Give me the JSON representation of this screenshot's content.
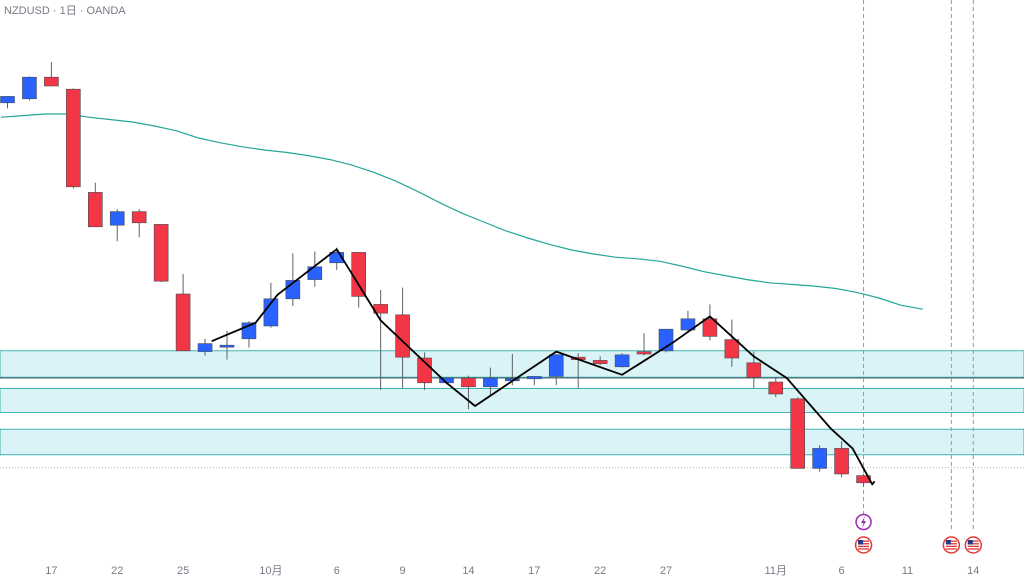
{
  "header": {
    "symbol_line": "NZDUSD · 1日 · OANDA"
  },
  "colors": {
    "up": "#2962ff",
    "down": "#f23645",
    "ma": "#26a69a",
    "zone_fill": "#cdeff3",
    "zone_stroke": "#1aa3a0",
    "line": "#000000",
    "event_purple": "#9c27b0",
    "event_red": "#e53935"
  },
  "chart_data": {
    "type": "candlestick",
    "x_tick_labels": [
      "17",
      "22",
      "25",
      "10月",
      "6",
      "9",
      "14",
      "17",
      "22",
      "27",
      "11月",
      "6",
      "11",
      "14"
    ],
    "candles": [
      {
        "dir": "up",
        "o": -0.02,
        "h": 0.08,
        "l": -0.16,
        "c": 0.14
      },
      {
        "dir": "up",
        "o": 0.08,
        "h": 0.64,
        "l": 0.04,
        "c": 0.62
      },
      {
        "dir": "down",
        "o": 0.62,
        "h": 1.0,
        "l": 0.4,
        "c": 0.4
      },
      {
        "dir": "down",
        "o": 0.32,
        "h": 0.34,
        "l": -2.16,
        "c": -2.12
      },
      {
        "dir": "down",
        "o": -2.26,
        "h": -2.02,
        "l": -3.12,
        "c": -3.12
      },
      {
        "dir": "up",
        "o": -3.08,
        "h": -2.68,
        "l": -3.48,
        "c": -2.74
      },
      {
        "dir": "down",
        "o": -2.74,
        "h": -2.68,
        "l": -3.38,
        "c": -3.02
      },
      {
        "dir": "down",
        "o": -3.06,
        "h": -3.06,
        "l": -4.5,
        "c": -4.48
      },
      {
        "dir": "down",
        "o": -4.8,
        "h": -4.3,
        "l": -6.22,
        "c": -6.22
      },
      {
        "dir": "up",
        "o": -6.24,
        "h": -5.92,
        "l": -6.34,
        "c": -6.04
      },
      {
        "dir": "up",
        "o": -6.1,
        "h": -5.72,
        "l": -6.44,
        "c": -6.08
      },
      {
        "dir": "up",
        "o": -5.92,
        "h": -5.48,
        "l": -6.14,
        "c": -5.52
      },
      {
        "dir": "up",
        "o": -5.6,
        "h": -4.52,
        "l": -5.64,
        "c": -4.92
      },
      {
        "dir": "up",
        "o": -4.92,
        "h": -3.78,
        "l": -5.1,
        "c": -4.46
      },
      {
        "dir": "up",
        "o": -4.44,
        "h": -3.74,
        "l": -4.62,
        "c": -4.12
      },
      {
        "dir": "up",
        "o": -4.02,
        "h": -3.64,
        "l": -4.2,
        "c": -3.76
      },
      {
        "dir": "down",
        "o": -3.76,
        "h": -3.76,
        "l": -5.14,
        "c": -4.86
      },
      {
        "dir": "down",
        "o": -5.06,
        "h": -4.7,
        "l": -7.2,
        "c": -5.28
      },
      {
        "dir": "down",
        "o": -5.32,
        "h": -4.64,
        "l": -7.16,
        "c": -6.38
      },
      {
        "dir": "down",
        "o": -6.4,
        "h": -6.26,
        "l": -7.2,
        "c": -7.02
      },
      {
        "dir": "up",
        "o": -7.02,
        "h": -6.96,
        "l": -7.06,
        "c": -6.9
      },
      {
        "dir": "down",
        "o": -6.9,
        "h": -6.84,
        "l": -7.68,
        "c": -7.12
      },
      {
        "dir": "up",
        "o": -7.12,
        "h": -6.64,
        "l": -7.36,
        "c": -6.9
      },
      {
        "dir": "up",
        "o": -6.92,
        "h": -6.3,
        "l": -7.08,
        "c": -6.92
      },
      {
        "dir": "up",
        "o": -6.92,
        "h": -6.86,
        "l": -7.08,
        "c": -6.86
      },
      {
        "dir": "up",
        "o": -6.86,
        "h": -6.3,
        "l": -7.08,
        "c": -6.32
      },
      {
        "dir": "down",
        "o": -6.38,
        "h": -6.28,
        "l": -7.16,
        "c": -6.44
      },
      {
        "dir": "down",
        "o": -6.46,
        "h": -6.36,
        "l": -6.58,
        "c": -6.54
      },
      {
        "dir": "up",
        "o": -6.62,
        "h": -6.28,
        "l": -6.64,
        "c": -6.32
      },
      {
        "dir": "down",
        "o": -6.24,
        "h": -5.78,
        "l": -6.34,
        "c": -6.3
      },
      {
        "dir": "up",
        "o": -6.22,
        "h": -5.78,
        "l": -6.26,
        "c": -5.68
      },
      {
        "dir": "up",
        "o": -5.7,
        "h": -5.22,
        "l": -5.76,
        "c": -5.42
      },
      {
        "dir": "down",
        "o": -5.42,
        "h": -5.06,
        "l": -5.96,
        "c": -5.86
      },
      {
        "dir": "down",
        "o": -5.94,
        "h": -5.44,
        "l": -6.62,
        "c": -6.4
      },
      {
        "dir": "down",
        "o": -6.52,
        "h": -6.24,
        "l": -7.16,
        "c": -6.88
      },
      {
        "dir": "down",
        "o": -7.0,
        "h": -6.88,
        "l": -7.38,
        "c": -7.3
      },
      {
        "dir": "down",
        "o": -7.42,
        "h": -7.38,
        "l": -9.16,
        "c": -9.16
      },
      {
        "dir": "up",
        "o": -9.16,
        "h": -8.58,
        "l": -9.24,
        "c": -8.66
      },
      {
        "dir": "down",
        "o": -8.66,
        "h": -8.48,
        "l": -9.38,
        "c": -9.3
      },
      {
        "dir": "down",
        "o": -9.34,
        "h": -9.3,
        "l": -9.62,
        "c": -9.52
      }
    ],
    "moving_average": [
      -0.38,
      -0.34,
      -0.3,
      -0.3,
      -0.38,
      -0.44,
      -0.5,
      -0.6,
      -0.72,
      -0.9,
      -1.02,
      -1.12,
      -1.2,
      -1.26,
      -1.34,
      -1.44,
      -1.58,
      -1.76,
      -1.98,
      -2.24,
      -2.52,
      -2.78,
      -3.0,
      -3.22,
      -3.4,
      -3.56,
      -3.7,
      -3.8,
      -3.88,
      -3.92,
      -3.98,
      -4.1,
      -4.24,
      -4.34,
      -4.44,
      -4.52,
      -4.56,
      -4.6,
      -4.66,
      -4.76,
      -4.9,
      -5.08,
      -5.18
    ],
    "swing_line": [
      [
        9.3,
        -5.98
      ],
      [
        11.3,
        -5.52
      ],
      [
        12.3,
        -4.82
      ],
      [
        15,
        -3.68
      ],
      [
        17,
        -5.46
      ],
      [
        20,
        -7.02
      ],
      [
        21.3,
        -7.6
      ],
      [
        25,
        -6.24
      ],
      [
        28,
        -6.82
      ],
      [
        30.3,
        -6.02
      ],
      [
        32,
        -5.36
      ],
      [
        34,
        -6.36
      ],
      [
        35.5,
        -6.9
      ],
      [
        37.5,
        -8.16
      ],
      [
        38.5,
        -8.66
      ],
      [
        39.4,
        -9.56
      ],
      [
        39.5,
        -9.48
      ]
    ],
    "zones": [
      {
        "top": -6.22,
        "bottom": -6.88
      },
      {
        "top": -7.16,
        "bottom": -7.76
      },
      {
        "top": -8.18,
        "bottom": -8.82
      }
    ],
    "support_line": -6.9,
    "current_price_line": -9.14,
    "events": [
      {
        "x": 39.0,
        "type": "lightning"
      },
      {
        "x": 39.0,
        "type": "flag-us"
      },
      {
        "x": 43.0,
        "type": "flag-us"
      },
      {
        "x": 44.0,
        "type": "flag-us"
      }
    ],
    "event_vlines": [
      39.0,
      43.0,
      44.0
    ]
  }
}
